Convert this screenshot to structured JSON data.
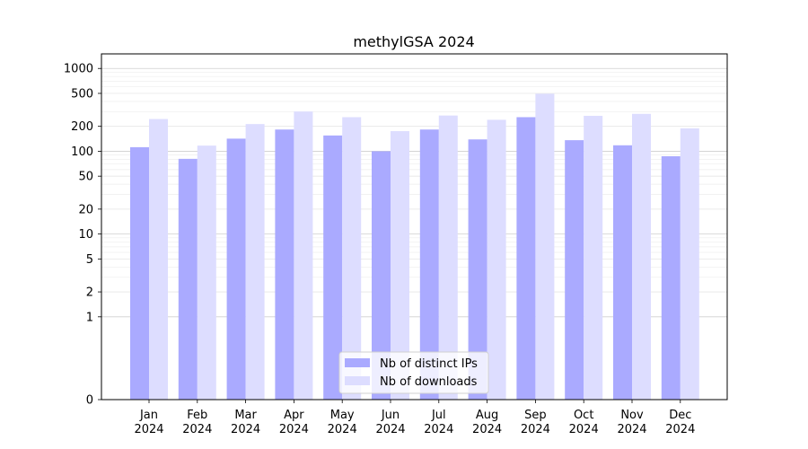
{
  "chart_data": {
    "type": "bar",
    "title": "methylGSA 2024",
    "xlabel": "",
    "ylabel": "",
    "yscale": "symlog",
    "ylim": [
      0,
      1500
    ],
    "yticks": [
      {
        "value": 0,
        "label": "0"
      },
      {
        "value": 1,
        "label": "1"
      },
      {
        "value": 2,
        "label": "2"
      },
      {
        "value": 5,
        "label": "5"
      },
      {
        "value": 10,
        "label": "10"
      },
      {
        "value": 20,
        "label": "20"
      },
      {
        "value": 50,
        "label": "50"
      },
      {
        "value": 100,
        "label": "100"
      },
      {
        "value": 200,
        "label": "200"
      },
      {
        "value": 500,
        "label": "500"
      },
      {
        "value": 1000,
        "label": "1000"
      }
    ],
    "categories": [
      {
        "month": "Jan",
        "year": "2024"
      },
      {
        "month": "Feb",
        "year": "2024"
      },
      {
        "month": "Mar",
        "year": "2024"
      },
      {
        "month": "Apr",
        "year": "2024"
      },
      {
        "month": "May",
        "year": "2024"
      },
      {
        "month": "Jun",
        "year": "2024"
      },
      {
        "month": "Jul",
        "year": "2024"
      },
      {
        "month": "Aug",
        "year": "2024"
      },
      {
        "month": "Sep",
        "year": "2024"
      },
      {
        "month": "Oct",
        "year": "2024"
      },
      {
        "month": "Nov",
        "year": "2024"
      },
      {
        "month": "Dec",
        "year": "2024"
      }
    ],
    "series": [
      {
        "name": "Nb of distinct IPs",
        "color": "#aaaaff",
        "values": [
          112,
          81,
          142,
          183,
          155,
          100,
          183,
          139,
          258,
          136,
          118,
          87
        ]
      },
      {
        "name": "Nb of downloads",
        "color": "#ddddff",
        "values": [
          245,
          117,
          213,
          302,
          258,
          175,
          270,
          240,
          495,
          268,
          283,
          189
        ]
      }
    ],
    "grid": true,
    "legend_position": "bottom-center"
  }
}
